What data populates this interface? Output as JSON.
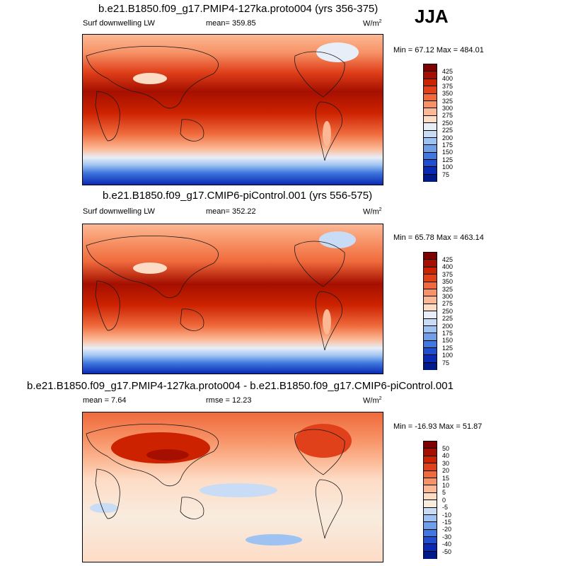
{
  "season": "JJA",
  "units_base": "W/m",
  "units_exp": "2",
  "panels": [
    {
      "title": "b.e21.B1850.f09_g17.PMIP4-127ka.proto004 (yrs 356-375)",
      "left_label": "Surf downwelling LW",
      "center_label": "mean= 359.85",
      "minmax": "Min =  67.12 Max = 484.01"
    },
    {
      "title": "b.e21.B1850.f09_g17.CMIP6-piControl.001 (yrs 556-575)",
      "left_label": "Surf downwelling LW",
      "center_label": "mean= 352.22",
      "minmax": "Min =  65.78 Max = 463.14"
    },
    {
      "title": "b.e21.B1850.f09_g17.PMIP4-127ka.proto004 - b.e21.B1850.f09_g17.CMIP6-piControl.001",
      "left_label": "mean =   7.64",
      "center_label": "rmse =  12.23",
      "minmax": "Min = -16.93 Max =  51.87"
    }
  ],
  "colorbars": {
    "absolute": {
      "labels": [
        "425",
        "400",
        "375",
        "350",
        "325",
        "300",
        "275",
        "250",
        "225",
        "200",
        "175",
        "150",
        "125",
        "100",
        "75"
      ],
      "colors": [
        "#7f0000",
        "#a50f00",
        "#cc2200",
        "#e0401a",
        "#ef6a3c",
        "#f79266",
        "#fcb894",
        "#fddcc6",
        "#e8eef8",
        "#c9dcf6",
        "#9ec3f2",
        "#6f9fe8",
        "#3f78de",
        "#1f4fcf",
        "#0a2ab4",
        "#001a8c"
      ]
    },
    "difference": {
      "labels": [
        "50",
        "40",
        "30",
        "20",
        "15",
        "10",
        "5",
        "0",
        "-5",
        "-10",
        "-15",
        "-20",
        "-30",
        "-40",
        "-50"
      ],
      "colors": [
        "#7f0000",
        "#a50f00",
        "#cc2200",
        "#e0401a",
        "#ef6a3c",
        "#f79266",
        "#fcb894",
        "#fddcc6",
        "#f8ecdf",
        "#c9dcf6",
        "#9ec3f2",
        "#6f9fe8",
        "#3f78de",
        "#1f4fcf",
        "#0a2ab4",
        "#001a8c"
      ]
    }
  }
}
